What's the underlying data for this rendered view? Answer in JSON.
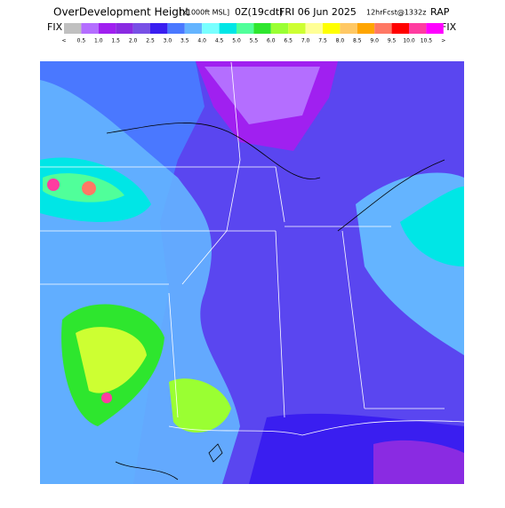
{
  "header": {
    "parts": [
      "OverDevelopment Height",
      "[x1000ft MSL]",
      "0Z(19cdt)",
      "FRI 06 Jun 2025",
      "12hrFcst@1332z",
      "RAP"
    ],
    "fix_left": "FIX",
    "fix_right": "FIX"
  },
  "colorbar": {
    "colors": [
      "#c0c0c0",
      "#b46eff",
      "#a020f0",
      "#8a2be2",
      "#7850e6",
      "#3a1ef0",
      "#4a78ff",
      "#64b4ff",
      "#78ffff",
      "#00e6e6",
      "#50ff9a",
      "#2ee62e",
      "#9aff32",
      "#cdff32",
      "#ffff96",
      "#ffff00",
      "#ffc864",
      "#ffa500",
      "#ff7864",
      "#ff0000",
      "#ff3ca0",
      "#ff00ff"
    ],
    "labels": [
      "<",
      "0.5",
      "1.0",
      "1.5",
      "2.0",
      "2.5",
      "3.0",
      "3.5",
      "4.0",
      "4.5",
      "5.0",
      "5.5",
      "6.0",
      "6.5",
      "7.0",
      "7.5",
      "8.0",
      "8.5",
      "9.0",
      "9.5",
      "10.0",
      "10.5",
      ">"
    ]
  }
}
